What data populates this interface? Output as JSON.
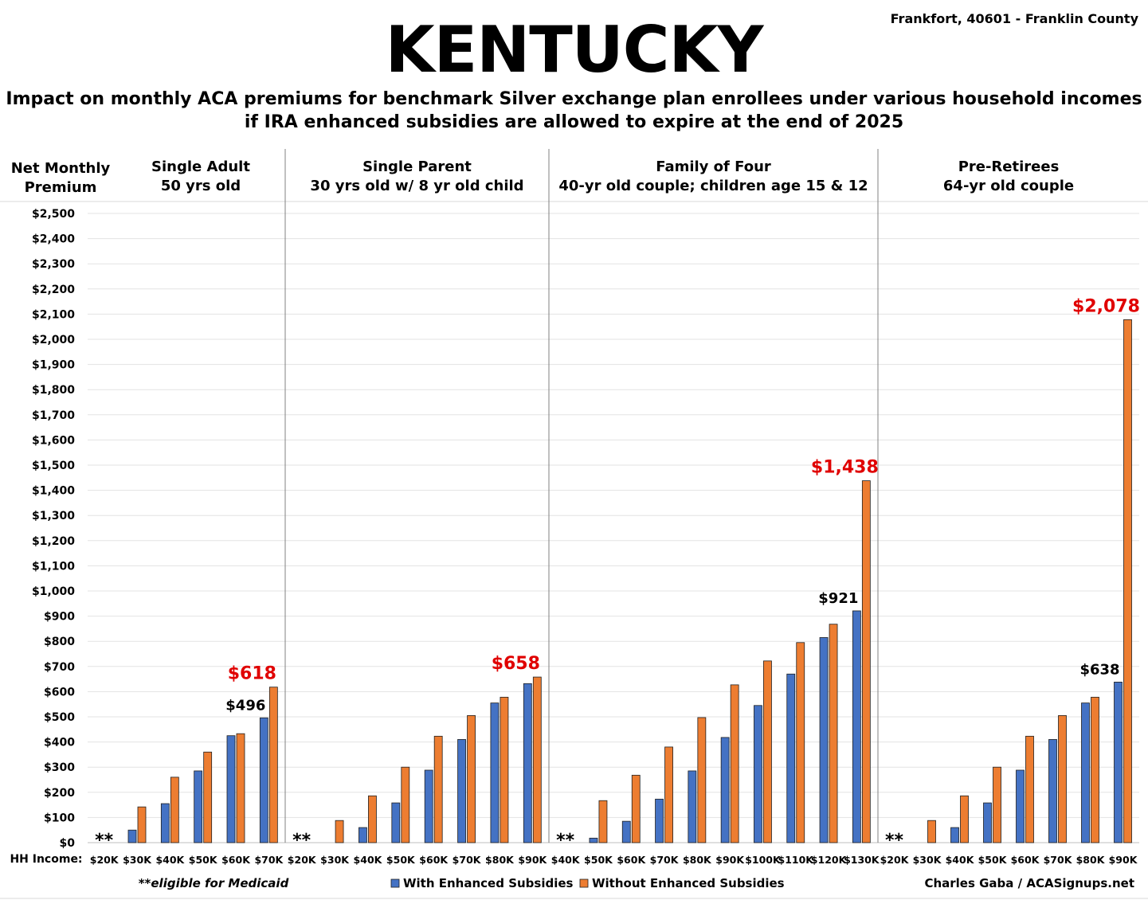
{
  "header": {
    "title": "KENTUCKY",
    "location": "Frankfort, 40601 - Franklin County",
    "subtitle_line1": "Impact on monthly ACA premiums for benchmark Silver exchange plan enrollees under various household incomes",
    "subtitle_line2": "if IRA enhanced subsidies are allowed to expire at the end of 2025"
  },
  "footer": {
    "medicaid_note": "**eligible for Medicaid",
    "credit": "Charles Gaba / ACASignups.net"
  },
  "colors": {
    "with_subsidies": "#4472C4",
    "without_subsidies": "#ED7D31",
    "highlight_label": "#E00000"
  },
  "chart_data": {
    "type": "bar",
    "ylabel": "Net Monthly Premium",
    "xlabel": "HH Income:",
    "ylim": [
      0,
      2500
    ],
    "ytick_step": 100,
    "grid": true,
    "legend_position": "bottom-center",
    "series_names": [
      "With Enhanced Subsidies",
      "Without Enhanced Subsidies"
    ],
    "medicaid_marker": "**",
    "panels": [
      {
        "name": "Single Adult",
        "subtitle": "50 yrs old",
        "categories": [
          "$20K",
          "$30K",
          "$40K",
          "$50K",
          "$60K",
          "$70K"
        ],
        "with": [
          0,
          50,
          155,
          285,
          425,
          496
        ],
        "without": [
          0,
          142,
          260,
          360,
          433,
          618
        ],
        "medicaid": [
          0
        ],
        "label_with": {
          "index": 5,
          "text": "$496"
        },
        "label_without": {
          "index": 5,
          "text": "$618"
        }
      },
      {
        "name": "Single Parent",
        "subtitle": "30 yrs old w/ 8 yr old child",
        "categories": [
          "$20K",
          "$30K",
          "$40K",
          "$50K",
          "$60K",
          "$70K",
          "$80K",
          "$90K"
        ],
        "with": [
          0,
          0,
          60,
          158,
          288,
          410,
          555,
          632
        ],
        "without": [
          0,
          88,
          186,
          300,
          423,
          505,
          578,
          658
        ],
        "medicaid": [
          0
        ],
        "label_without": {
          "index": 7,
          "text": "$658"
        }
      },
      {
        "name": "Family of Four",
        "subtitle": "40-yr old couple; children age 15 & 12",
        "categories": [
          "$40K",
          "$50K",
          "$60K",
          "$70K",
          "$80K",
          "$90K",
          "$100K",
          "$110K",
          "$120K",
          "$130K"
        ],
        "with": [
          0,
          18,
          85,
          173,
          285,
          418,
          545,
          670,
          815,
          921
        ],
        "without": [
          0,
          167,
          268,
          380,
          497,
          627,
          722,
          795,
          868,
          1438
        ],
        "medicaid": [
          0
        ],
        "label_with": {
          "index": 9,
          "text": "$921"
        },
        "label_without": {
          "index": 9,
          "text": "$1,438"
        }
      },
      {
        "name": "Pre-Retirees",
        "subtitle": "64-yr old couple",
        "categories": [
          "$20K",
          "$30K",
          "$40K",
          "$50K",
          "$60K",
          "$70K",
          "$80K",
          "$90K"
        ],
        "with": [
          0,
          0,
          60,
          158,
          288,
          410,
          555,
          638
        ],
        "without": [
          0,
          88,
          186,
          300,
          423,
          505,
          578,
          2078
        ],
        "medicaid": [
          0
        ],
        "label_with": {
          "index": 7,
          "text": "$638"
        },
        "label_without": {
          "index": 7,
          "text": "$2,078"
        }
      }
    ]
  }
}
